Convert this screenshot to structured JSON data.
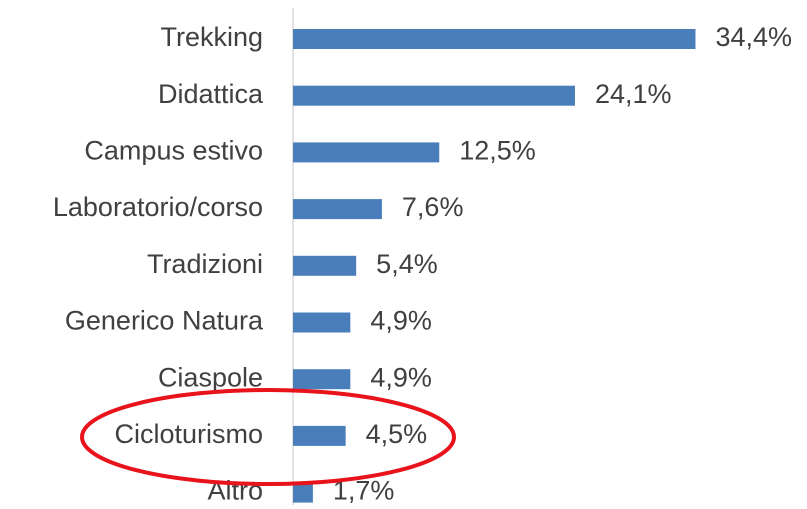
{
  "chart_data": {
    "type": "barh",
    "categories": [
      "Trekking",
      "Didattica",
      "Campus estivo",
      "Laboratorio/corso",
      "Tradizioni",
      "Generico Natura",
      "Ciaspole",
      "Cicloturismo",
      "Altro"
    ],
    "values": [
      34.4,
      24.1,
      12.5,
      7.6,
      5.4,
      4.9,
      4.9,
      4.5,
      1.7
    ],
    "value_labels": [
      "34,4%",
      "24,1%",
      "12,5%",
      "7,6%",
      "5,4%",
      "4,9%",
      "4,9%",
      "4,5%",
      "1,7%"
    ],
    "color": "#4a7ebb"
  }
}
